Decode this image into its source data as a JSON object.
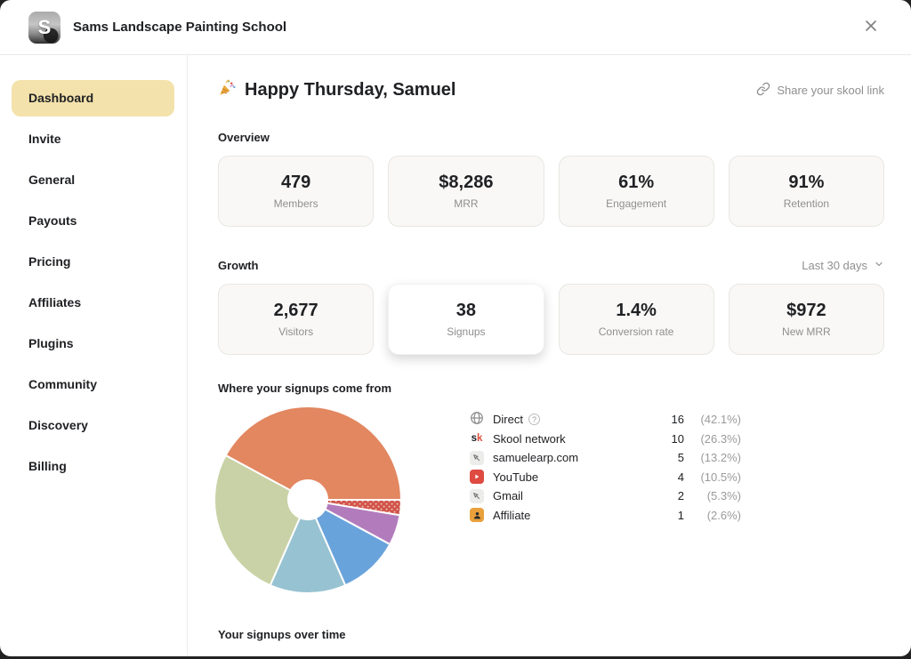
{
  "window": {
    "title": "Sams Landscape Painting School",
    "logo_letter": "S"
  },
  "sidebar": {
    "items": [
      {
        "label": "Dashboard",
        "active": true
      },
      {
        "label": "Invite",
        "active": false
      },
      {
        "label": "General",
        "active": false
      },
      {
        "label": "Payouts",
        "active": false
      },
      {
        "label": "Pricing",
        "active": false
      },
      {
        "label": "Affiliates",
        "active": false
      },
      {
        "label": "Plugins",
        "active": false
      },
      {
        "label": "Community",
        "active": false
      },
      {
        "label": "Discovery",
        "active": false
      },
      {
        "label": "Billing",
        "active": false
      }
    ]
  },
  "main": {
    "greeting": "Happy Thursday, Samuel",
    "share_link_label": "Share your skool link",
    "overview": {
      "label": "Overview",
      "cards": [
        {
          "value": "479",
          "label": "Members"
        },
        {
          "value": "$8,286",
          "label": "MRR"
        },
        {
          "value": "61%",
          "label": "Engagement"
        },
        {
          "value": "91%",
          "label": "Retention"
        }
      ]
    },
    "growth": {
      "label": "Growth",
      "filter_value": "Last 30 days",
      "cards": [
        {
          "value": "2,677",
          "label": "Visitors",
          "selected": false
        },
        {
          "value": "38",
          "label": "Signups",
          "selected": true
        },
        {
          "value": "1.4%",
          "label": "Conversion rate",
          "selected": false
        },
        {
          "value": "$972",
          "label": "New MRR",
          "selected": false
        }
      ]
    },
    "signups_sources_title": "Where your signups come from",
    "signups_over_time_title": "Your signups over time"
  },
  "chart_data": {
    "type": "pie",
    "title": "Where your signups come from",
    "donut": true,
    "total": 38,
    "start_angle_deg": 0,
    "direction": "counterclockwise",
    "legend_position": "right",
    "series": [
      {
        "label": "Direct",
        "value": 16,
        "pct": "(42.1%)",
        "color": "#E28760",
        "icon": "globe",
        "help": true
      },
      {
        "label": "Skool network",
        "value": 10,
        "pct": "(26.3%)",
        "color": "#C9D2A6",
        "icon": "skool"
      },
      {
        "label": "samuelearp.com",
        "value": 5,
        "pct": "(13.2%)",
        "color": "#97C2D1",
        "icon": "web"
      },
      {
        "label": "YouTube",
        "value": 4,
        "pct": "(10.5%)",
        "color": "#69A3DB",
        "icon": "youtube"
      },
      {
        "label": "Gmail",
        "value": 2,
        "pct": "(5.3%)",
        "color": "#B27CBC",
        "icon": "web"
      },
      {
        "label": "Affiliate",
        "value": 1,
        "pct": "(2.6%)",
        "color": "#D0534B",
        "icon": "affiliate",
        "pattern": "dots"
      }
    ]
  }
}
